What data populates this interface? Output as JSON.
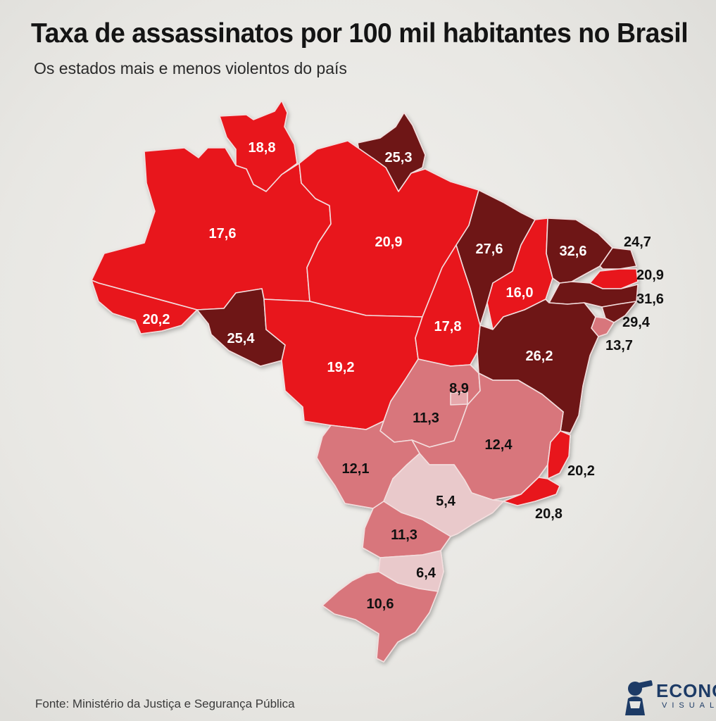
{
  "header": {
    "title": "Taxa de assassinatos por 100 mil habitantes no Brasil",
    "subtitle": "Os estados mais e menos violentos do país"
  },
  "map": {
    "type": "choropleth",
    "metric": "Taxa de assassinatos por 100 mil habitantes",
    "colors": {
      "lightest": "#e9c9cb",
      "light": "#e6a7ab",
      "medium": "#d8767c",
      "red": "#e8121c",
      "dark": "#6e1414"
    },
    "states": [
      {
        "uf": "RR",
        "value": "18,8"
      },
      {
        "uf": "AP",
        "value": "25,3"
      },
      {
        "uf": "AM",
        "value": "17,6"
      },
      {
        "uf": "PA",
        "value": "20,9"
      },
      {
        "uf": "AC",
        "value": "20,2"
      },
      {
        "uf": "RO",
        "value": "25,4"
      },
      {
        "uf": "MT",
        "value": "19,2"
      },
      {
        "uf": "TO",
        "value": "17,8"
      },
      {
        "uf": "MA",
        "value": "27,6"
      },
      {
        "uf": "PI",
        "value": "16,0"
      },
      {
        "uf": "CE",
        "value": "32,6"
      },
      {
        "uf": "RN",
        "value": "24,7"
      },
      {
        "uf": "PB",
        "value": "20,9"
      },
      {
        "uf": "PE",
        "value": "31,6"
      },
      {
        "uf": "AL",
        "value": "29,4"
      },
      {
        "uf": "SE",
        "value": "13,7"
      },
      {
        "uf": "BA",
        "value": "26,2"
      },
      {
        "uf": "DF",
        "value": "8,9"
      },
      {
        "uf": "GO",
        "value": "11,3"
      },
      {
        "uf": "MG",
        "value": "12,4"
      },
      {
        "uf": "ES",
        "value": "20,2"
      },
      {
        "uf": "RJ",
        "value": "20,8"
      },
      {
        "uf": "MS",
        "value": "12,1"
      },
      {
        "uf": "SP",
        "value": "5,4"
      },
      {
        "uf": "PR",
        "value": "11,3"
      },
      {
        "uf": "SC",
        "value": "6,4"
      },
      {
        "uf": "RS",
        "value": "10,6"
      }
    ]
  },
  "footer": {
    "source": "Fonte: Ministério da Justiça e Segurança Pública",
    "logo_name": "ECONOMI",
    "logo_sub": "VISUAL"
  }
}
